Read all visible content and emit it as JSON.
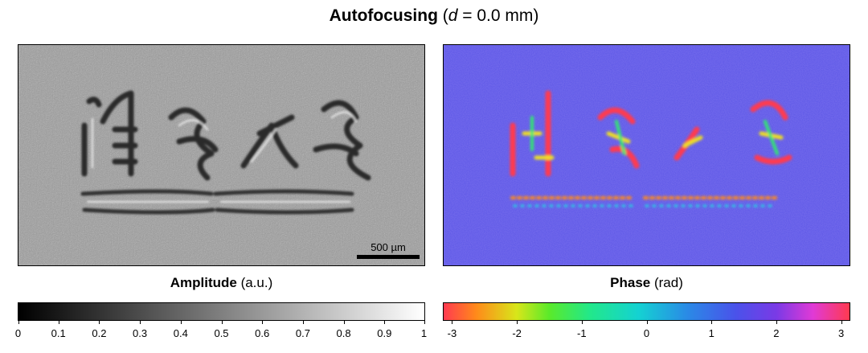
{
  "title": {
    "main": "Autofocusing",
    "open": " (",
    "var": "d",
    "rest": " = 0.0 mm)"
  },
  "amplitude": {
    "label_bold": "Amplitude",
    "label_unit": " (a.u.)",
    "scale_bar": "500 µm",
    "colormap": [
      "#000000",
      "#ffffff"
    ],
    "ticks": [
      "0",
      "0.1",
      "0.2",
      "0.3",
      "0.4",
      "0.5",
      "0.6",
      "0.7",
      "0.8",
      "0.9",
      "1"
    ]
  },
  "phase": {
    "label_bold": "Phase",
    "label_unit": " (rad)",
    "colormap": [
      "#ff3a50",
      "#ff8a1a",
      "#d8e61a",
      "#5aea2a",
      "#22e88a",
      "#14d2d2",
      "#2a8ae6",
      "#4a52ea",
      "#7a3ae6",
      "#e03ad6",
      "#ff3a50"
    ],
    "ticks": [
      "-3",
      "-2",
      "-1",
      "0",
      "1",
      "2",
      "3"
    ],
    "tick_values": [
      -3,
      -2,
      -1,
      0,
      1,
      2,
      3
    ],
    "range": [
      -3.1416,
      3.1416
    ]
  }
}
